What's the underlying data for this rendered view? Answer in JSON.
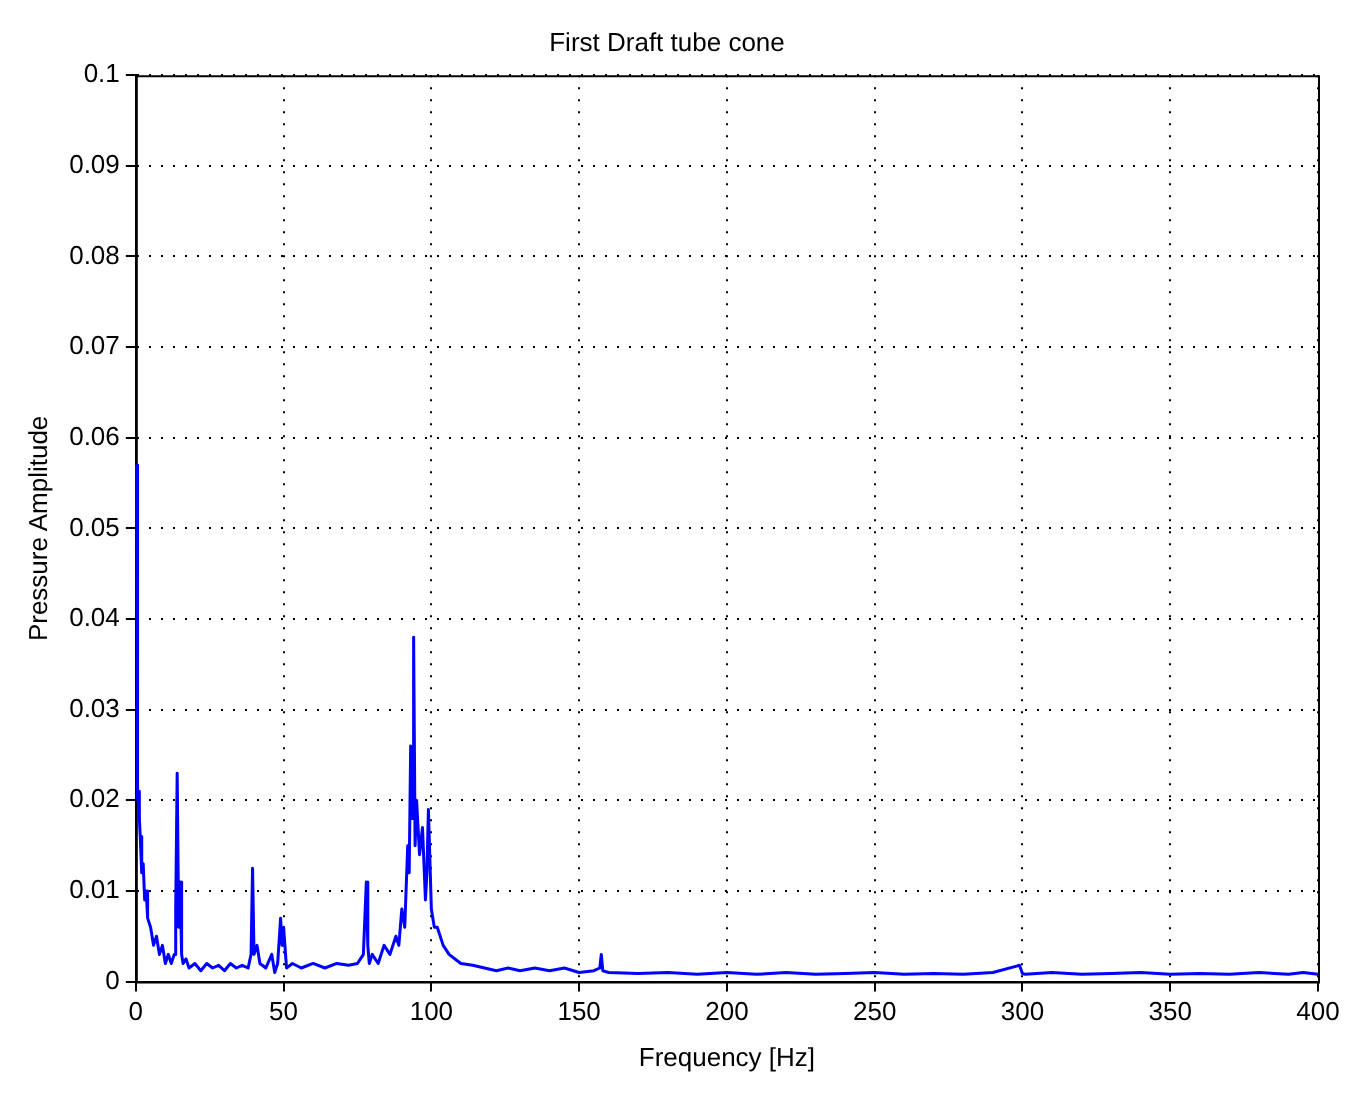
{
  "chart_data": {
    "type": "line",
    "title": "First Draft tube cone",
    "xlabel": "Frequency [Hz]",
    "ylabel": "Pressure Amplitude",
    "x": [
      0.3,
      0.6,
      0.9,
      1.2,
      1.5,
      2,
      2.5,
      3,
      3.5,
      4,
      5,
      6,
      7,
      8,
      9,
      10,
      11,
      12,
      13,
      13.5,
      14,
      14.5,
      15,
      15.5,
      16,
      17,
      18,
      20,
      22,
      24,
      26,
      28,
      30,
      32,
      34,
      36,
      38,
      39,
      39.5,
      40,
      41,
      42,
      44,
      46,
      47,
      48,
      49,
      49.5,
      50,
      51,
      53,
      56,
      60,
      64,
      68,
      72,
      75,
      77,
      78,
      78.5,
      79,
      80,
      82,
      84,
      86,
      88,
      89,
      90,
      91,
      92,
      92.5,
      93,
      93.5,
      94,
      94.5,
      95,
      96,
      97,
      98,
      98.5,
      99,
      100,
      101,
      102,
      104,
      106,
      108,
      110,
      114,
      118,
      122,
      126,
      130,
      135,
      140,
      145,
      150,
      155,
      157,
      157.5,
      158,
      160,
      170,
      180,
      190,
      200,
      210,
      220,
      230,
      240,
      250,
      260,
      270,
      280,
      290,
      299,
      300,
      301,
      310,
      320,
      330,
      340,
      350,
      360,
      370,
      380,
      390,
      395,
      400
    ],
    "series": [
      {
        "color": "#0000ff",
        "values": [
          0.057,
          0.02,
          0.021,
          0.018,
          0.016,
          0.012,
          0.013,
          0.009,
          0.01,
          0.007,
          0.006,
          0.004,
          0.005,
          0.003,
          0.004,
          0.002,
          0.003,
          0.002,
          0.003,
          0.008,
          0.023,
          0.006,
          0.011,
          0.003,
          0.002,
          0.0025,
          0.0015,
          0.002,
          0.0012,
          0.002,
          0.0015,
          0.0018,
          0.0012,
          0.002,
          0.0015,
          0.0018,
          0.0015,
          0.003,
          0.0125,
          0.003,
          0.004,
          0.002,
          0.0015,
          0.003,
          0.001,
          0.002,
          0.007,
          0.004,
          0.006,
          0.0015,
          0.002,
          0.0015,
          0.002,
          0.0015,
          0.002,
          0.0018,
          0.002,
          0.003,
          0.011,
          0.004,
          0.002,
          0.003,
          0.002,
          0.004,
          0.003,
          0.005,
          0.004,
          0.008,
          0.006,
          0.015,
          0.012,
          0.026,
          0.018,
          0.038,
          0.015,
          0.02,
          0.014,
          0.017,
          0.009,
          0.012,
          0.019,
          0.008,
          0.006,
          0.006,
          0.004,
          0.003,
          0.0025,
          0.002,
          0.0018,
          0.0015,
          0.0012,
          0.0015,
          0.0012,
          0.0015,
          0.0012,
          0.0015,
          0.001,
          0.0012,
          0.0015,
          0.003,
          0.0012,
          0.001,
          0.0009,
          0.001,
          0.0008,
          0.001,
          0.0008,
          0.001,
          0.0008,
          0.0009,
          0.001,
          0.0008,
          0.0009,
          0.0008,
          0.001,
          0.0018,
          0.0009,
          0.0008,
          0.001,
          0.0008,
          0.0009,
          0.001,
          0.0008,
          0.0009,
          0.0008,
          0.001,
          0.0008,
          0.001,
          0.0008
        ]
      }
    ],
    "xlim": [
      0,
      400
    ],
    "xticks": [
      0,
      50,
      100,
      150,
      200,
      250,
      300,
      350,
      400
    ],
    "ylim": [
      0,
      0.1
    ],
    "yticks": [
      0,
      0.01,
      0.02,
      0.03,
      0.04,
      0.05,
      0.06,
      0.07,
      0.08,
      0.09,
      0.1
    ],
    "grid": true,
    "line_style": "solid",
    "legend": false
  }
}
